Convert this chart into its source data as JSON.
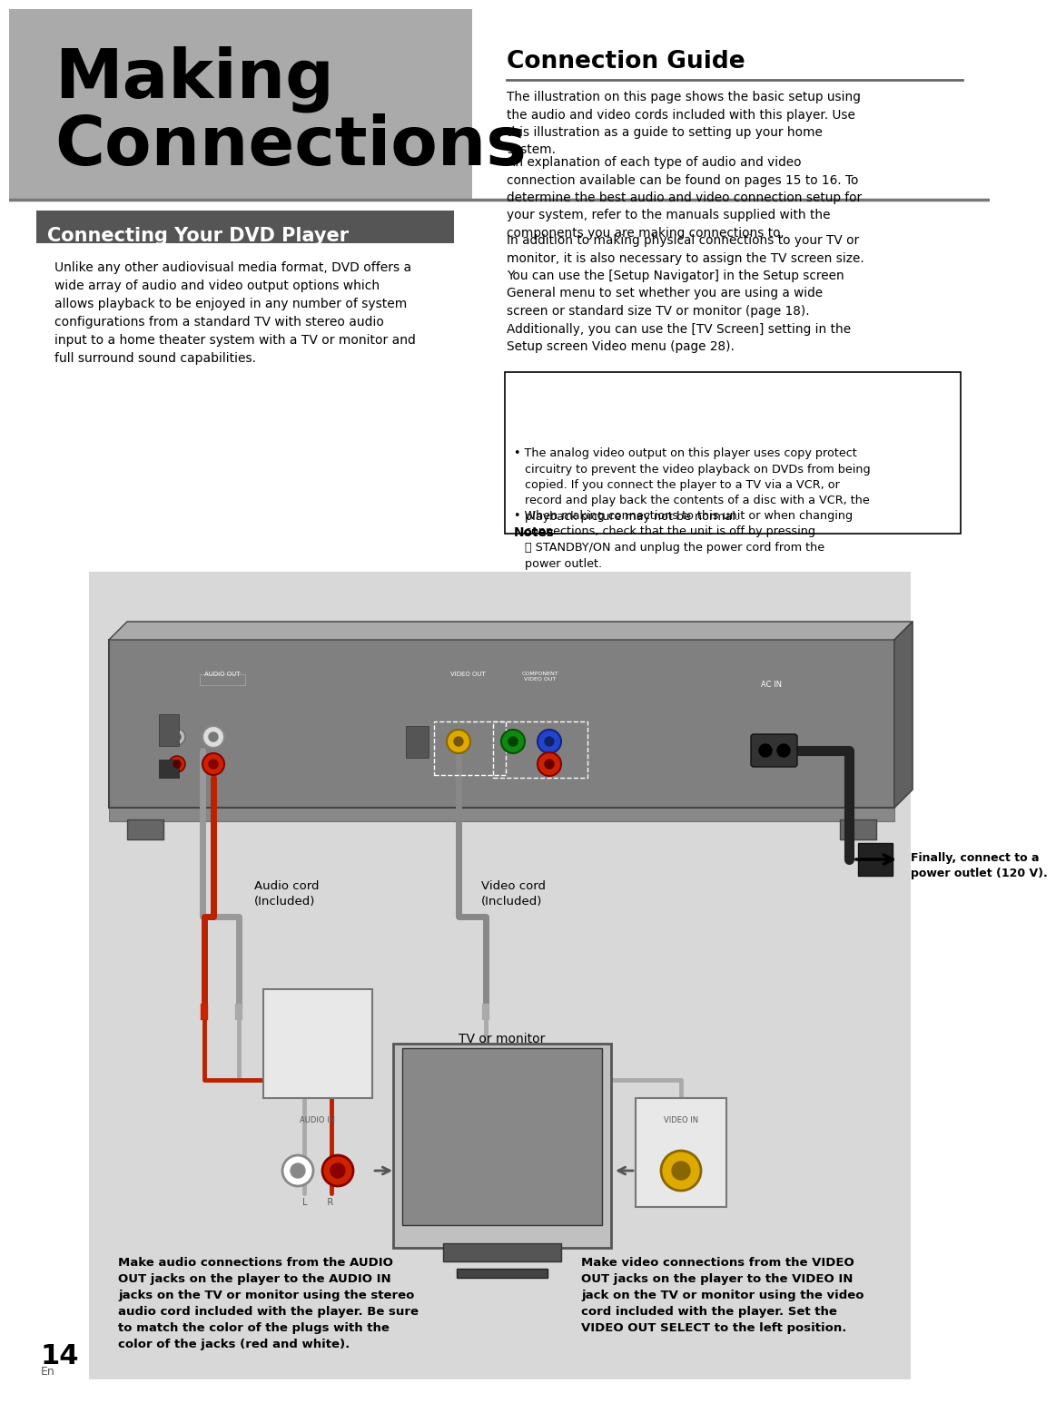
{
  "page_bg": "#ffffff",
  "header_bg": "#aaaaaa",
  "section_header_bg": "#555555",
  "section_header_text": "#ffffff",
  "diagram_bg": "#d8d8d8",
  "diagram_inner_bg": "#e8e8e8",
  "dvd_body_color": "#888888",
  "dvd_dark": "#444444",
  "title_main_line1": "Making",
  "title_main_line2": "Connections",
  "title_section": "Connecting Your DVD Player",
  "title_connection_guide": "Connection Guide",
  "body_text_left": "Unlike any other audiovisual media format, DVD offers a\nwide array of audio and video output options which\nallows playback to be enjoyed in any number of system\nconfigurations from a standard TV with stereo audio\ninput to a home theater system with a TV or monitor and\nfull surround sound capabilities.",
  "connection_guide_p1": "The illustration on this page shows the basic setup using\nthe audio and video cords included with this player. Use\nthis illustration as a guide to setting up your home\nsystem.",
  "connection_guide_p2": "An explanation of each type of audio and video\nconnection available can be found on pages 15 to 16. To\ndetermine the best audio and video connection setup for\nyour system, refer to the manuals supplied with the\ncomponents you are making connections to.",
  "connection_guide_p3": "In addition to making physical connections to your TV or\nmonitor, it is also necessary to assign the TV screen size.\nYou can use the [Setup Navigator] in the Setup screen\nGeneral menu to set whether you are using a wide\nscreen or standard size TV or monitor (page 18).\nAdditionally, you can use the [TV Screen] setting in the\nSetup screen Video menu (page 28).",
  "notes_title": "Notes",
  "note1": "When making connections to this unit or when changing\nconnections, check that the unit is off by pressing\n⭘ STANDBY/ON and unplug the power cord from the\npower outlet.",
  "note2": "The analog video output on this player uses copy protect\ncircuitry to prevent the video playback on DVDs from being\ncopied. If you connect the player to a TV via a VCR, or\nrecord and play back the contents of a disc with a VCR, the\nplayback picture may not be normal.",
  "label_audio": "Audio cord\n(Included)",
  "label_video": "Video cord\n(Included)",
  "label_power": "Finally, connect to a\npower outlet (120 V).",
  "label_tv": "TV or monitor",
  "label_audio_instruction": "Make audio connections from the AUDIO\nOUT jacks on the player to the AUDIO IN\njacks on the TV or monitor using the stereo\naudio cord included with the player. Be sure\nto match the color of the plugs with the\ncolor of the jacks (red and white).",
  "label_video_instruction": "Make video connections from the VIDEO\nOUT jacks on the player to the VIDEO IN\njack on the TV or monitor using the video\ncord included with the player. Set the\nVIDEO OUT SELECT to the left position.",
  "page_number": "14",
  "page_number_sub": "En"
}
